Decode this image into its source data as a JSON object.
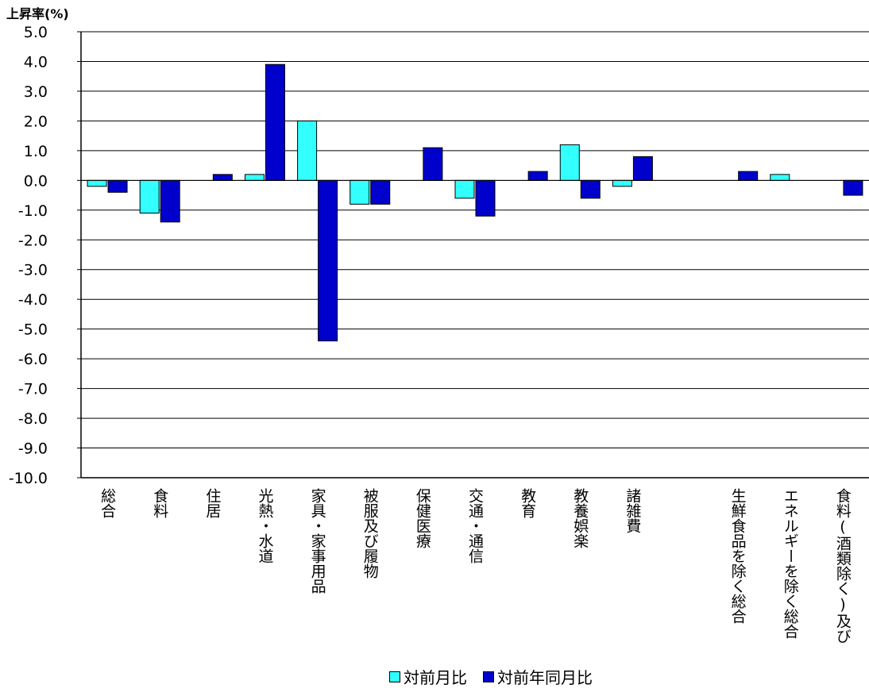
{
  "chart_data": {
    "type": "bar",
    "ylabel": "上昇率(%)",
    "ylim": [
      -10,
      5
    ],
    "yticks": [
      "5.0",
      "4.0",
      "3.0",
      "2.0",
      "1.0",
      "0.0",
      "-1.0",
      "-2.0",
      "-3.0",
      "-4.0",
      "-5.0",
      "-6.0",
      "-7.0",
      "-8.0",
      "-9.0",
      "-10.0"
    ],
    "grid": true,
    "legend_position": "bottom",
    "categories": [
      "総合",
      "食料",
      "住居",
      "光熱・水道",
      "家具・家事用品",
      "被服及び履物",
      "保健医療",
      "交通・通信",
      "教育",
      "教養娯楽",
      "諸雑費",
      "",
      "生鮮食品を除く総合",
      "エネルギーを除く総合",
      "食料(酒類除く)及び"
    ],
    "series": [
      {
        "name": "対前月比",
        "color": "#33FFFF",
        "values": [
          -0.2,
          -1.1,
          0.0,
          0.2,
          2.0,
          -0.8,
          0.0,
          -0.6,
          0.0,
          1.2,
          -0.2,
          null,
          0.0,
          0.2,
          0.0
        ]
      },
      {
        "name": "対前年同月比",
        "color": "#0000CC",
        "values": [
          -0.4,
          -1.4,
          0.2,
          3.9,
          -5.4,
          -0.8,
          1.1,
          -1.2,
          0.3,
          -0.6,
          0.8,
          null,
          0.3,
          0.0,
          -0.5
        ]
      }
    ]
  }
}
